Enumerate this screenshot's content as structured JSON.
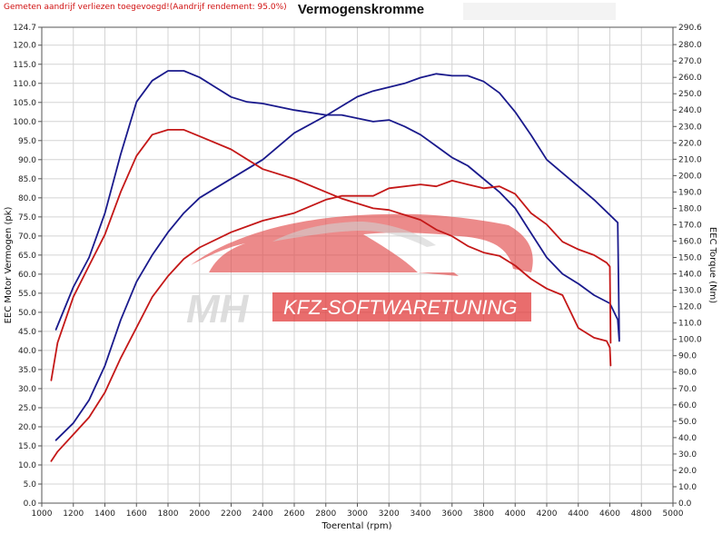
{
  "header": {
    "note": "Gemeten aandrijf verliezen toegevoegd!(Aandrijf rendement: 95.0%)",
    "title": "Vermogenskromme"
  },
  "watermark": {
    "initials": "MH",
    "text": "KFZ-SOFTWARETUNING",
    "color": "#e02020"
  },
  "colors": {
    "tuned": "#1a1a8c",
    "stock": "#c41818",
    "grid": "#d4d4d4"
  },
  "chart_data": {
    "type": "line",
    "title": "Vermogenskromme",
    "xlabel": "Toerental (rpm)",
    "ylabel": "EEC Motor Vermogen (pk)",
    "y2label": "EEC Torque (Nm)",
    "xlim": [
      1000,
      5000
    ],
    "ylim": [
      0,
      124.7
    ],
    "y2lim": [
      0,
      290.6
    ],
    "grid": true,
    "x_ticks": [
      "1000",
      "1200",
      "1400",
      "1600",
      "1800",
      "2000",
      "2200",
      "2400",
      "2600",
      "2800",
      "3000",
      "3200",
      "3400",
      "3600",
      "3800",
      "4000",
      "4200",
      "4400",
      "4600",
      "4800",
      "5000"
    ],
    "y_ticks": [
      "0.0",
      "5.0",
      "10.0",
      "15.0",
      "20.0",
      "25.0",
      "30.0",
      "35.0",
      "40.0",
      "45.0",
      "50.0",
      "55.0",
      "60.0",
      "65.0",
      "70.0",
      "75.0",
      "80.0",
      "85.0",
      "90.0",
      "95.0",
      "100.0",
      "105.0",
      "110.0",
      "115.0",
      "120.0",
      "124.7"
    ],
    "y2_ticks": [
      "0.0",
      "10.0",
      "20.0",
      "30.0",
      "40.0",
      "50.0",
      "60.0",
      "70.0",
      "80.0",
      "90.0",
      "100.0",
      "110.0",
      "120.0",
      "130.0",
      "140.0",
      "150.0",
      "160.0",
      "170.0",
      "180.0",
      "190.0",
      "200.0",
      "210.0",
      "220.0",
      "230.0",
      "240.0",
      "250.0",
      "260.0",
      "270.0",
      "280.0",
      "290.6"
    ],
    "series": [
      {
        "axis": "left",
        "color": "#1a1a8c",
        "x": [
          1090,
          1200,
          1300,
          1400,
          1500,
          1600,
          1700,
          1800,
          1900,
          2000,
          2100,
          2200,
          2300,
          2400,
          2600,
          2800,
          2900,
          3000,
          3100,
          3200,
          3300,
          3400,
          3500,
          3600,
          3700,
          3800,
          3900,
          4000,
          4100,
          4200,
          4300,
          4400,
          4500,
          4600,
          4650,
          4660
        ],
        "y": [
          16.5,
          21,
          27,
          36,
          48,
          58,
          65,
          71,
          76,
          80,
          82.5,
          85,
          87.5,
          90,
          97,
          101.5,
          104,
          106.5,
          108,
          109,
          110,
          111.5,
          112.5,
          112,
          112,
          110.5,
          107.5,
          102.5,
          96.5,
          90,
          86.5,
          83,
          79.5,
          75.5,
          73.5,
          43
        ]
      },
      {
        "axis": "right",
        "color": "#1a1a8c",
        "x": [
          1090,
          1200,
          1300,
          1400,
          1500,
          1600,
          1700,
          1800,
          1900,
          2000,
          2100,
          2200,
          2300,
          2400,
          2600,
          2800,
          2900,
          3000,
          3100,
          3200,
          3300,
          3400,
          3500,
          3600,
          3700,
          3800,
          3900,
          4000,
          4100,
          4200,
          4300,
          4400,
          4500,
          4600,
          4650,
          4660
        ],
        "y": [
          106,
          132,
          150,
          177,
          213,
          245,
          258,
          264,
          264,
          260,
          254,
          248,
          245,
          244,
          240,
          237,
          237,
          235,
          233,
          234,
          230,
          225,
          218,
          211,
          206,
          198,
          190,
          180,
          165,
          150,
          140,
          134,
          127,
          122,
          112,
          99
        ]
      },
      {
        "axis": "left",
        "color": "#c41818",
        "x": [
          1060,
          1100,
          1200,
          1300,
          1400,
          1500,
          1600,
          1700,
          1800,
          1900,
          2000,
          2200,
          2400,
          2600,
          2800,
          2900,
          3000,
          3100,
          3200,
          3400,
          3500,
          3600,
          3700,
          3800,
          3900,
          4000,
          4100,
          4200,
          4300,
          4400,
          4500,
          4580,
          4600,
          4605
        ],
        "y": [
          11,
          13.5,
          18,
          22.5,
          29,
          38,
          46,
          54,
          59.5,
          64,
          67,
          71,
          74,
          76,
          79.5,
          80.5,
          80.5,
          80.5,
          82.5,
          83.5,
          83,
          84.5,
          83.5,
          82.5,
          83,
          81,
          76,
          73,
          68.5,
          66.5,
          65,
          63,
          62,
          42
        ]
      },
      {
        "axis": "right",
        "color": "#c41818",
        "x": [
          1060,
          1100,
          1200,
          1300,
          1400,
          1500,
          1600,
          1700,
          1800,
          1900,
          2000,
          2200,
          2400,
          2600,
          2800,
          2900,
          3000,
          3100,
          3200,
          3400,
          3500,
          3600,
          3700,
          3800,
          3900,
          4000,
          4100,
          4200,
          4300,
          4400,
          4500,
          4580,
          4600,
          4605
        ],
        "y": [
          75,
          98,
          126,
          145,
          164,
          190,
          212,
          225,
          228,
          228,
          224,
          216,
          204,
          198,
          190,
          186,
          183,
          180,
          179,
          173,
          167,
          163,
          157,
          153,
          151,
          145,
          137,
          131,
          127,
          107,
          101,
          99,
          95,
          84
        ]
      }
    ]
  },
  "axes": {
    "left_label": "EEC Motor Vermogen (pk)",
    "right_label": "EEC Torque (Nm)",
    "bottom_label": "Toerental (rpm)"
  }
}
